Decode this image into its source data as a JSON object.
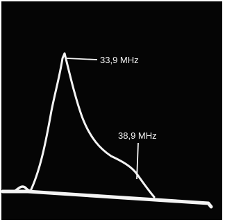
{
  "annotations": {
    "peak_label": "33,9 MHz",
    "marker_label": "38,9 MHz"
  },
  "colors": {
    "screen": "#050505",
    "frame": "#ffffff",
    "trace": "#f4f4f4"
  }
}
